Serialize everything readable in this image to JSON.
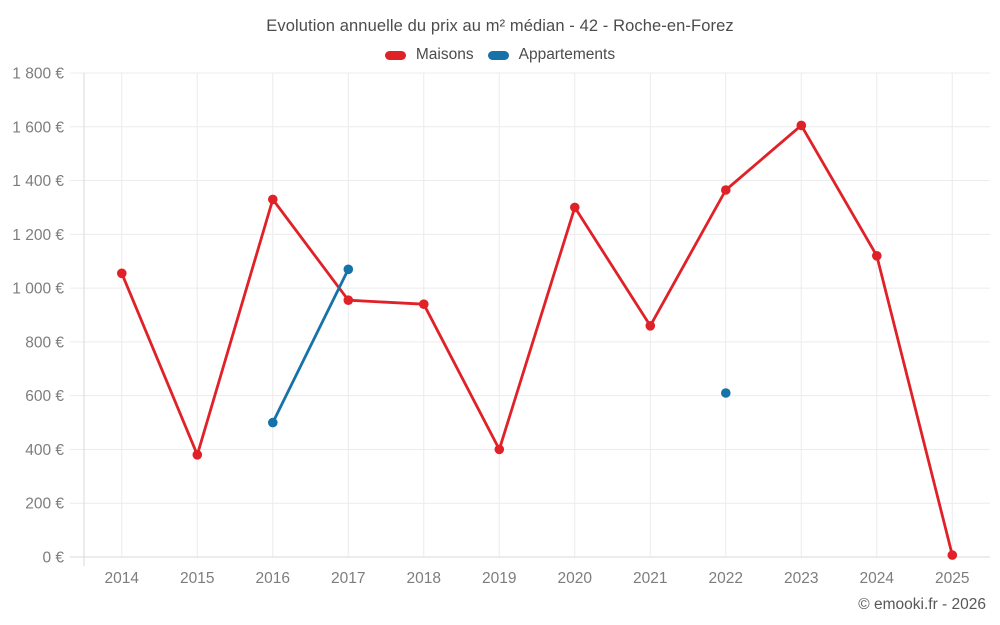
{
  "header": {
    "title": "Evolution annuelle du prix au m² médian - 42 - Roche-en-Forez"
  },
  "chart_data": {
    "type": "line",
    "title": "Evolution annuelle du prix au m² médian - 42 - Roche-en-Forez",
    "x": [
      "2014",
      "2015",
      "2016",
      "2017",
      "2018",
      "2019",
      "2020",
      "2021",
      "2022",
      "2023",
      "2024",
      "2025"
    ],
    "series": [
      {
        "name": "Maisons",
        "color": "#e02128",
        "values": [
          1055,
          380,
          1330,
          955,
          940,
          400,
          1300,
          860,
          1365,
          1605,
          1120,
          7
        ]
      },
      {
        "name": "Appartements",
        "color": "#1672a9",
        "values": [
          null,
          null,
          500,
          1070,
          null,
          null,
          null,
          null,
          610,
          null,
          null,
          null
        ]
      }
    ],
    "ylim": [
      0,
      1800
    ],
    "ytick_step": 200,
    "ytick_suffix": " €",
    "grid": true,
    "legend_position": "top"
  },
  "footer": {
    "text": "© emooki.fr - 2026"
  }
}
